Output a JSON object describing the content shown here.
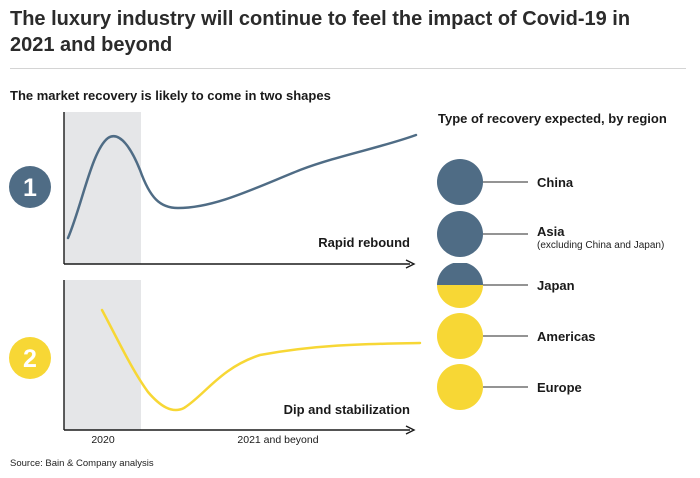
{
  "header": {
    "title": "The luxury industry will continue to feel the impact of Covid-19 in 2021 and beyond"
  },
  "chart": {
    "subtitle": "The market recovery is likely to come in two shapes",
    "legend_title": "Type of recovery expected, by region",
    "source": "Source: Bain & Company analysis"
  },
  "colors": {
    "dark_blue": "#4f6c85",
    "yellow": "#f7d735",
    "shade": "#e5e6e8",
    "axis": "#1a1a1a"
  },
  "chart_data": [
    {
      "type": "line",
      "badge": "1",
      "label": "Rapid rebound",
      "color": "#4f6c85",
      "x_labels": [
        "2020",
        "2021 and beyond"
      ],
      "shaded_period": "2020",
      "grid": false
    },
    {
      "type": "line",
      "badge": "2",
      "label": "Dip and stabilization",
      "color": "#f7d735",
      "x_labels": [
        "2020",
        "2021 and beyond"
      ],
      "shaded_period": "2020",
      "grid": false
    }
  ],
  "regions": [
    {
      "name": "China",
      "note": "",
      "recovery": "Rapid rebound",
      "fill": "full-blue"
    },
    {
      "name": "Asia",
      "note": "(excluding China and Japan)",
      "recovery": "Rapid rebound",
      "fill": "full-blue"
    },
    {
      "name": "Japan",
      "note": "",
      "recovery": "Mixed",
      "fill": "half-blue-half-yellow"
    },
    {
      "name": "Americas",
      "note": "",
      "recovery": "Dip and stabilization",
      "fill": "full-yellow"
    },
    {
      "name": "Europe",
      "note": "",
      "recovery": "Dip and stabilization",
      "fill": "full-yellow"
    }
  ]
}
